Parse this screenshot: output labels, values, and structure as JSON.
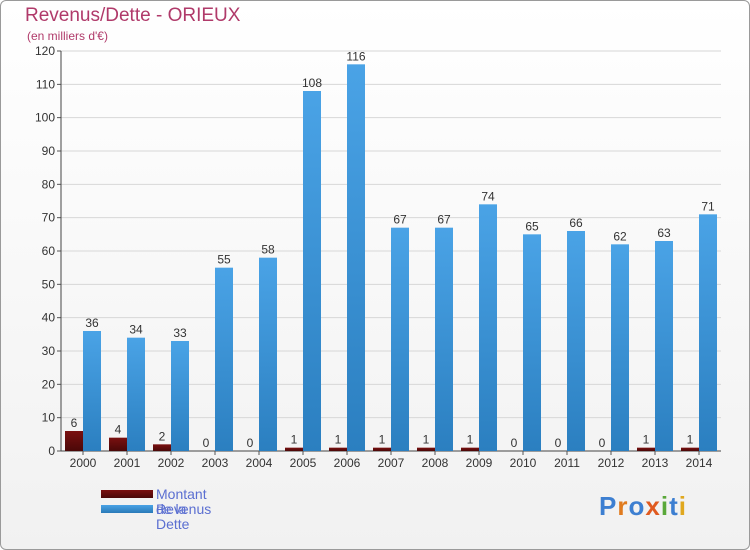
{
  "title": "Revenus/Dette - ORIEUX",
  "subtitle": "(en milliers d'€)",
  "logo": "Proxiti",
  "colors": {
    "dette": "#7a1010",
    "revenus": "#4aa3e6",
    "title": "#b03a6a",
    "legend": "#5b6fd1"
  },
  "chart_data": {
    "type": "bar",
    "title": "Revenus/Dette - ORIEUX",
    "ylabel": "(en milliers d'€)",
    "xlabel": "",
    "ylim": [
      0,
      120
    ],
    "yticks": [
      0,
      10,
      20,
      30,
      40,
      50,
      60,
      70,
      80,
      90,
      100,
      110,
      120
    ],
    "grid": "horizontal",
    "categories": [
      "2000",
      "2001",
      "2002",
      "2003",
      "2004",
      "2005",
      "2006",
      "2007",
      "2008",
      "2009",
      "2010",
      "2011",
      "2012",
      "2013",
      "2014"
    ],
    "series": [
      {
        "name": "Montant de la Dette",
        "values": [
          6,
          4,
          2,
          0,
          0,
          1,
          1,
          1,
          1,
          1,
          0,
          0,
          0,
          1,
          1
        ]
      },
      {
        "name": "Revenus",
        "values": [
          36,
          34,
          33,
          55,
          58,
          108,
          116,
          67,
          67,
          74,
          65,
          66,
          62,
          63,
          71
        ]
      }
    ],
    "legend_position": "bottom-left"
  }
}
